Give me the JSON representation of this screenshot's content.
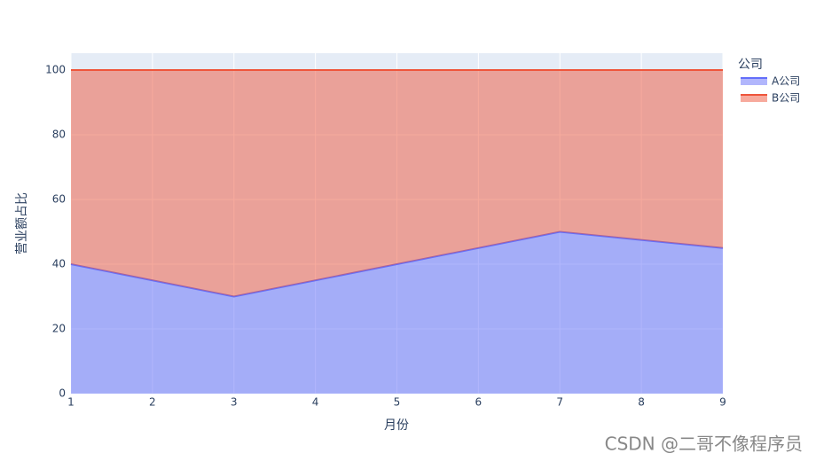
{
  "chart_data": {
    "type": "stacked-area",
    "x_label": "月份",
    "y_label": "营业额占比",
    "x": [
      1,
      3,
      5,
      7,
      9
    ],
    "series": [
      {
        "name": "A公司",
        "color": "#636efa",
        "values": [
          40,
          30,
          40,
          50,
          45
        ]
      },
      {
        "name": "B公司",
        "color": "#ef553b",
        "values": [
          60,
          70,
          60,
          50,
          55
        ]
      }
    ],
    "xlim": [
      1,
      9
    ],
    "xticks": [
      1,
      2,
      3,
      4,
      5,
      6,
      7,
      8,
      9
    ],
    "ylim": [
      0,
      105.2
    ],
    "yticks": [
      0,
      20,
      40,
      60,
      80,
      100
    ],
    "grid": true,
    "legend_title": "公司",
    "legend_position": "right",
    "watermark": "CSDN @二哥不像程序员"
  }
}
